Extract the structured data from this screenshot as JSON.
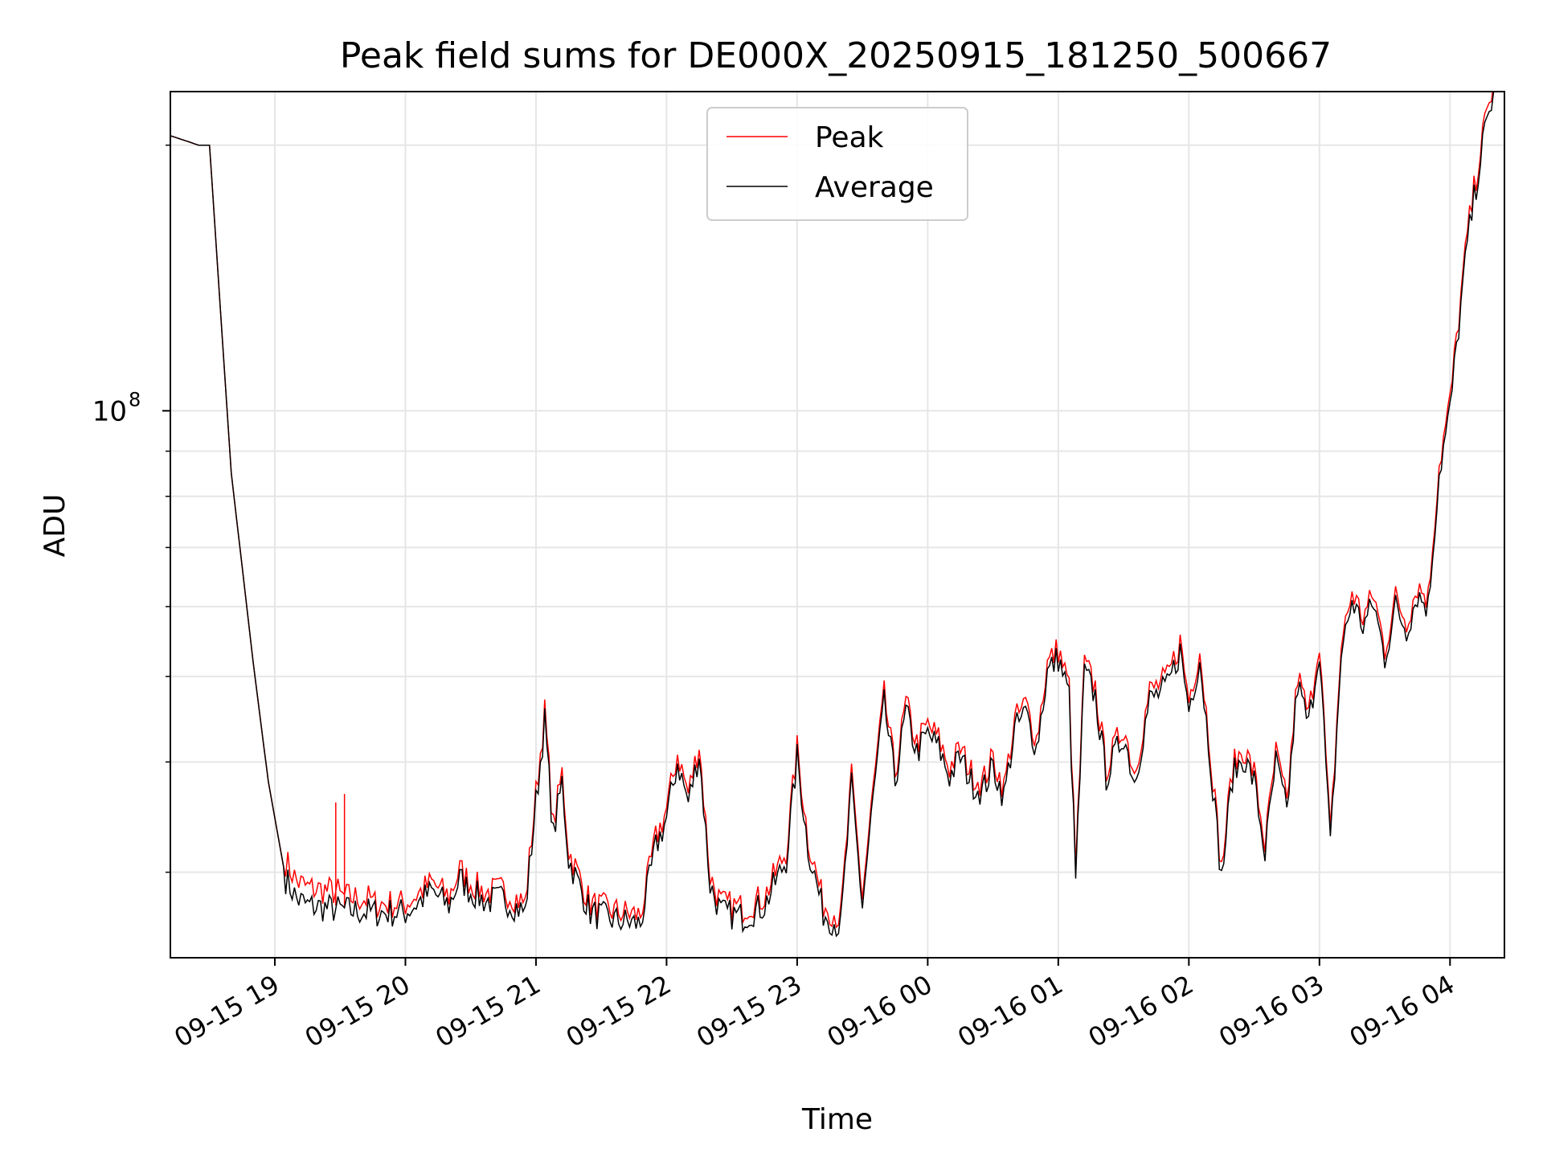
{
  "chart_data": {
    "type": "line",
    "title": "Peak field sums for DE000X_20250915_181250_500667",
    "xlabel": "Time",
    "ylabel": "ADU",
    "yscale": "log",
    "ytick_labels": [
      {
        "base": "10",
        "exp": "8",
        "value": 100000000
      }
    ],
    "y_minor_ticks": [
      30000000,
      40000000,
      50000000,
      60000000,
      70000000,
      80000000,
      90000000,
      200000000
    ],
    "ylim": [
      24000000,
      230000000
    ],
    "xlim": [
      "2025-09-15 18:12:30",
      "2025-09-16 04:25:00"
    ],
    "xtick_labels": [
      "09-15 19",
      "09-15 20",
      "09-15 21",
      "09-15 22",
      "09-15 23",
      "09-16 00",
      "09-16 01",
      "09-16 02",
      "09-16 03",
      "09-16 04"
    ],
    "xtick_values": [
      "2025-09-15 19:00",
      "2025-09-15 20:00",
      "2025-09-15 21:00",
      "2025-09-15 22:00",
      "2025-09-15 23:00",
      "2025-09-16 00:00",
      "2025-09-16 01:00",
      "2025-09-16 02:00",
      "2025-09-16 03:00",
      "2025-09-16 04:00"
    ],
    "grid": true,
    "legend_position": "top-center",
    "legend": [
      {
        "label": "Peak",
        "color": "#ff0000"
      },
      {
        "label": "Average",
        "color": "#000000"
      }
    ],
    "series": [
      {
        "name": "Average",
        "color": "#000000",
        "x": [
          "2025-09-15 18:12",
          "2025-09-15 18:25",
          "2025-09-15 18:30",
          "2025-09-15 18:35",
          "2025-09-15 18:40",
          "2025-09-15 18:50",
          "2025-09-15 18:57",
          "2025-09-15 19:05",
          "2025-09-15 19:10",
          "2025-09-15 19:15",
          "2025-09-15 19:30",
          "2025-09-15 19:45",
          "2025-09-15 20:00",
          "2025-09-15 20:12",
          "2025-09-15 20:20",
          "2025-09-15 20:25",
          "2025-09-15 20:30",
          "2025-09-15 20:37",
          "2025-09-15 20:45",
          "2025-09-15 20:55",
          "2025-09-15 21:00",
          "2025-09-15 21:04",
          "2025-09-15 21:08",
          "2025-09-15 21:12",
          "2025-09-15 21:15",
          "2025-09-15 21:25",
          "2025-09-15 21:35",
          "2025-09-15 21:48",
          "2025-09-15 21:55",
          "2025-09-15 22:00",
          "2025-09-15 22:05",
          "2025-09-15 22:10",
          "2025-09-15 22:15",
          "2025-09-15 22:20",
          "2025-09-15 22:25",
          "2025-09-15 22:35",
          "2025-09-15 22:45",
          "2025-09-15 22:55",
          "2025-09-15 23:00",
          "2025-09-15 23:05",
          "2025-09-15 23:12",
          "2025-09-15 23:20",
          "2025-09-15 23:25",
          "2025-09-15 23:30",
          "2025-09-15 23:35",
          "2025-09-15 23:40",
          "2025-09-15 23:45",
          "2025-09-15 23:50",
          "2025-09-15 23:55",
          "2025-09-16 00:00",
          "2025-09-16 00:05",
          "2025-09-16 00:10",
          "2025-09-16 00:15",
          "2025-09-16 00:20",
          "2025-09-16 00:25",
          "2025-09-16 00:30",
          "2025-09-16 00:35",
          "2025-09-16 00:40",
          "2025-09-16 00:45",
          "2025-09-16 00:50",
          "2025-09-16 00:55",
          "2025-09-16 01:00",
          "2025-09-16 01:05",
          "2025-09-16 01:08",
          "2025-09-16 01:12",
          "2025-09-16 01:17",
          "2025-09-16 01:22",
          "2025-09-16 01:30",
          "2025-09-16 01:35",
          "2025-09-16 01:42",
          "2025-09-16 01:50",
          "2025-09-16 01:56",
          "2025-09-16 02:00",
          "2025-09-16 02:05",
          "2025-09-16 02:10",
          "2025-09-16 02:15",
          "2025-09-16 02:20",
          "2025-09-16 02:25",
          "2025-09-16 02:30",
          "2025-09-16 02:35",
          "2025-09-16 02:40",
          "2025-09-16 02:45",
          "2025-09-16 02:50",
          "2025-09-16 02:55",
          "2025-09-16 03:00",
          "2025-09-16 03:05",
          "2025-09-16 03:10",
          "2025-09-16 03:15",
          "2025-09-16 03:20",
          "2025-09-16 03:25",
          "2025-09-16 03:30",
          "2025-09-16 03:35",
          "2025-09-16 03:40",
          "2025-09-16 03:45",
          "2025-09-16 03:50",
          "2025-09-16 03:55",
          "2025-09-16 04:00",
          "2025-09-16 04:08",
          "2025-09-16 04:12",
          "2025-09-16 04:15",
          "2025-09-16 04:20"
        ],
        "values": [
          205000000,
          200000000,
          200000000,
          130000000,
          85000000,
          52000000,
          38000000,
          29500000,
          28000000,
          27500000,
          27200000,
          27000000,
          27000000,
          28500000,
          27500000,
          29500000,
          28500000,
          27800000,
          28000000,
          27000000,
          36000000,
          44500000,
          33000000,
          38000000,
          31000000,
          27000000,
          26500000,
          26200000,
          32000000,
          34500000,
          40000000,
          36000000,
          41000000,
          29000000,
          27000000,
          26700000,
          27500000,
          31000000,
          40500000,
          32000000,
          27000000,
          26000000,
          37500000,
          27500000,
          36500000,
          46500000,
          38000000,
          45500000,
          41000000,
          43000000,
          41500000,
          38500000,
          40500000,
          38000000,
          37000000,
          39500000,
          36500000,
          43500000,
          45500000,
          41500000,
          50500000,
          52500000,
          47500000,
          29500000,
          50500000,
          47500000,
          38500000,
          43000000,
          38000000,
          47000000,
          48500000,
          53500000,
          46000000,
          52500000,
          40000000,
          29500000,
          38500000,
          40500000,
          38000000,
          31500000,
          40000000,
          35000000,
          49000000,
          44000000,
          54000000,
          32000000,
          53000000,
          61000000,
          57000000,
          60500000,
          52500000,
          60000000,
          56500000,
          62000000,
          60000000,
          85000000,
          100000000,
          155000000,
          180000000,
          200000000,
          230000000
        ]
      },
      {
        "name": "Peak",
        "color": "#ff0000",
        "offsets": [
          0,
          0,
          0,
          0,
          0,
          0,
          0,
          0.02,
          0.02,
          0.02,
          0.015,
          0.01,
          0.01,
          0.01,
          0.01,
          0.01,
          0.01,
          0.01,
          0.01,
          0.01,
          0.01,
          0.01,
          0.01,
          0.01,
          0.01,
          0.01,
          0.01,
          0.01,
          0.01,
          0.01,
          0.01,
          0.01,
          0.01,
          0.01,
          0.01,
          0.01,
          0.01,
          0.01,
          0.01,
          0.01,
          0.01,
          0.01,
          0.01,
          0.01,
          0.01,
          0.01,
          0.01,
          0.01,
          0.01,
          0.01,
          0.01,
          0.01,
          0.01,
          0.01,
          0.01,
          0.01,
          0.01,
          0.01,
          0.01,
          0.01,
          0.01,
          0.01,
          0.01,
          0.01,
          0.01,
          0.01,
          0.01,
          0.01,
          0.01,
          0.01,
          0.01,
          0.01,
          0.01,
          0.01,
          0.01,
          0.01,
          0.01,
          0.01,
          0.01,
          0.01,
          0.01,
          0.01,
          0.01,
          0.01,
          0.01,
          0.01,
          0.01,
          0.01,
          0.01,
          0.01,
          0.01,
          0.01,
          0.01,
          0.01,
          0.01,
          0.01,
          0.01,
          0.01,
          0.01,
          0.01,
          0.01
        ],
        "spikes": [
          {
            "x": "2025-09-15 19:28",
            "y": 36000000
          },
          {
            "x": "2025-09-15 19:32",
            "y": 36800000
          }
        ]
      }
    ]
  }
}
